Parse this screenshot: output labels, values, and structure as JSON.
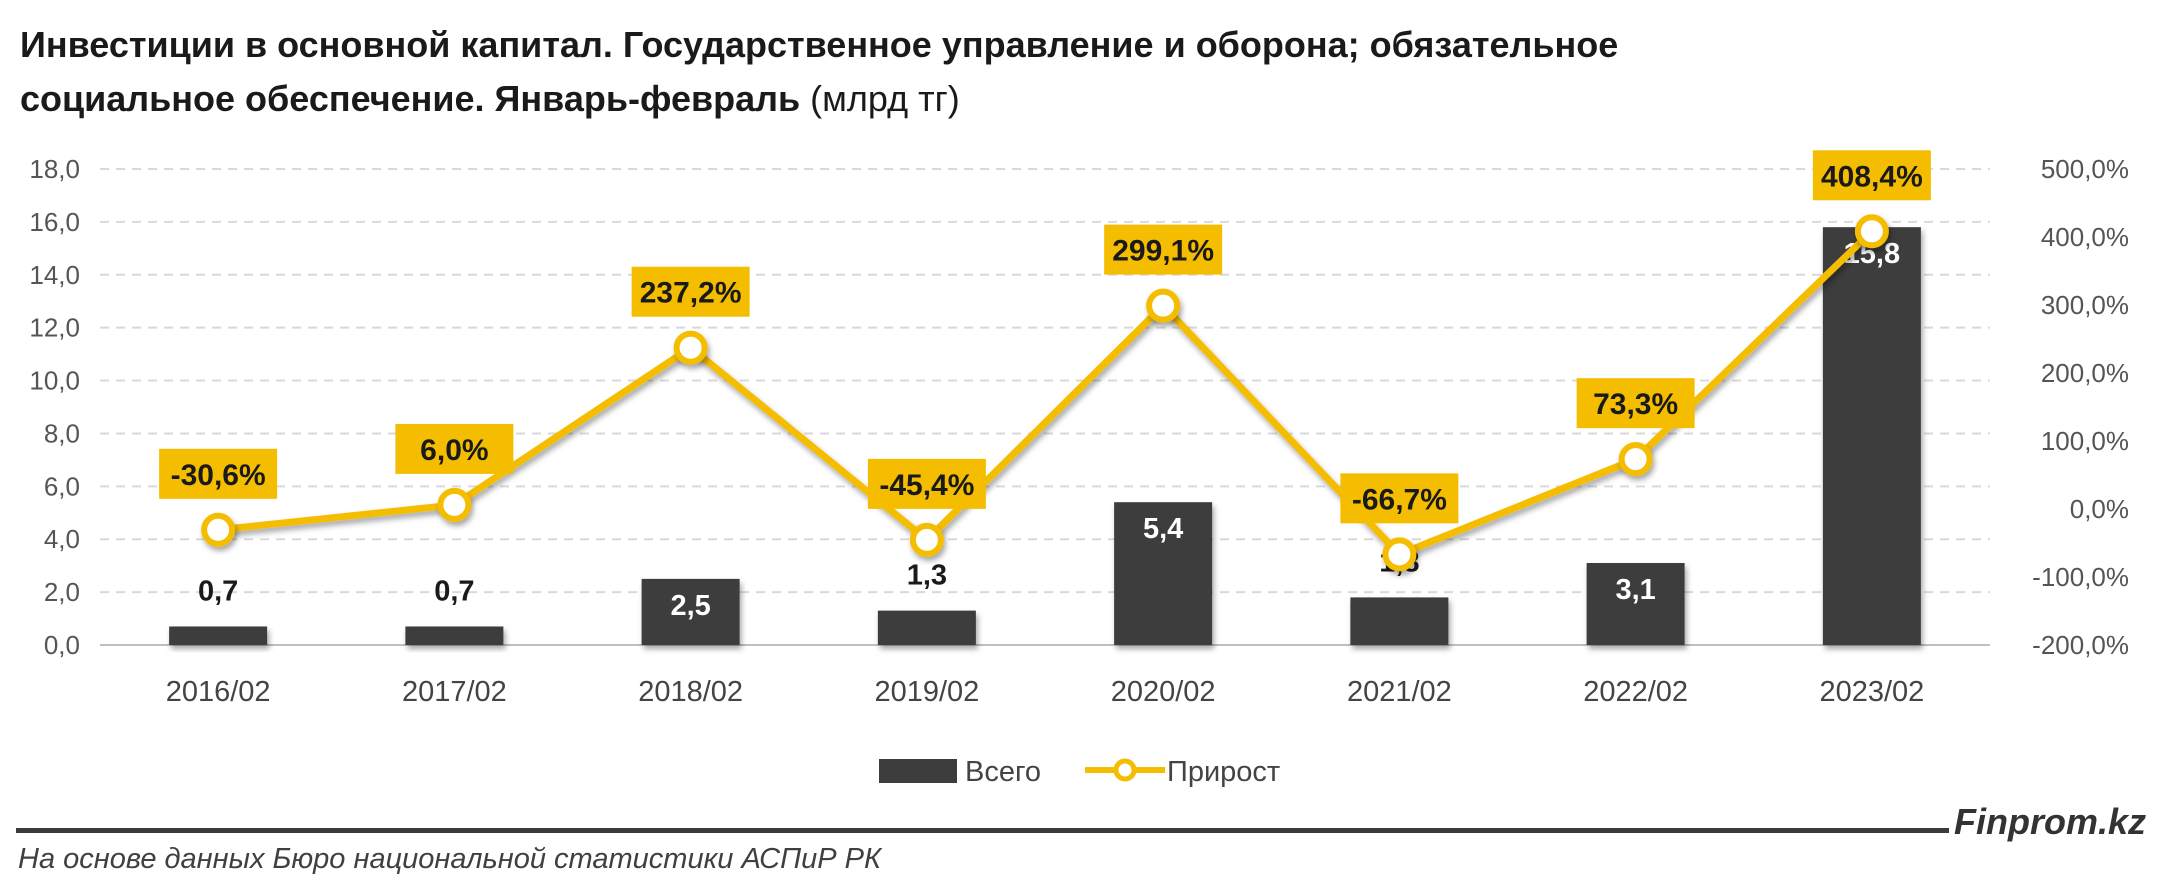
{
  "title": {
    "line1": "Инвестиции в основной капитал. Государственное управление и оборона; обязательное",
    "line2": "социальное обеспечение. Январь-февраль",
    "unit": "(млрд тг)"
  },
  "chart_data": {
    "type": "bar",
    "categories": [
      "2016/02",
      "2017/02",
      "2018/02",
      "2019/02",
      "2020/02",
      "2021/02",
      "2022/02",
      "2023/02"
    ],
    "series": [
      {
        "name": "Всего",
        "type": "bar",
        "axis": "left",
        "values": [
          0.7,
          0.7,
          2.5,
          1.3,
          5.4,
          1.8,
          3.1,
          15.8
        ],
        "labels": [
          "0,7",
          "0,7",
          "2,5",
          "1,3",
          "5,4",
          "1,8",
          "3,1",
          "15,8"
        ],
        "color": "#3d3d3d"
      },
      {
        "name": "Прирост",
        "type": "line",
        "axis": "right",
        "values": [
          -30.6,
          6.0,
          237.2,
          -45.4,
          299.1,
          -66.7,
          73.3,
          408.4
        ],
        "labels": [
          "-30,6%",
          "6,0%",
          "237,2%",
          "-45,4%",
          "299,1%",
          "-66,7%",
          "73,3%",
          "408,4%"
        ],
        "color": "#f5bd00"
      }
    ],
    "y_left": {
      "range": [
        0,
        18
      ],
      "ticks": [
        "0,0",
        "2,0",
        "4,0",
        "6,0",
        "8,0",
        "10,0",
        "12,0",
        "14,0",
        "16,0",
        "18,0"
      ]
    },
    "y_right": {
      "range": [
        -200,
        500
      ],
      "ticks": [
        "-200,0%",
        "-100,0%",
        "0,0%",
        "100,0%",
        "200,0%",
        "300,0%",
        "400,0%",
        "500,0%"
      ]
    },
    "grid": true,
    "legend_position": "bottom"
  },
  "footer": {
    "source": "На основе данных Бюро национальной статистики АСПиР РК",
    "brand": "Finprom.kz"
  }
}
